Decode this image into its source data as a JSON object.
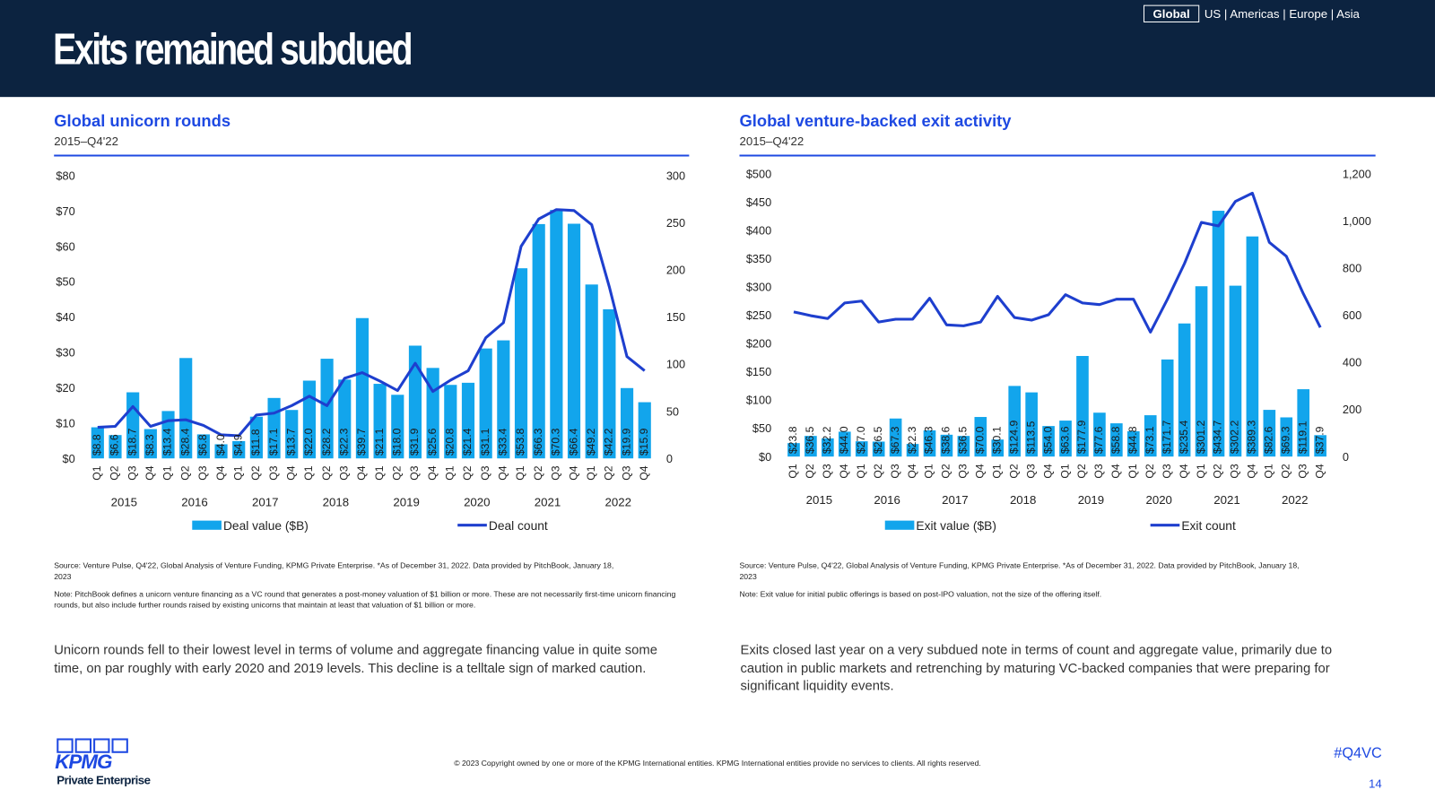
{
  "header": {
    "title": "Exits remained subdued",
    "nav_active": "Global",
    "nav_others": "US | Americas | Europe | Asia"
  },
  "chart_data": [
    {
      "type": "bar_line",
      "title": "Global unicorn rounds",
      "subtitle": "2015–Q4'22",
      "categories": [
        "Q1",
        "Q2",
        "Q3",
        "Q4",
        "Q1",
        "Q2",
        "Q3",
        "Q4",
        "Q1",
        "Q2",
        "Q3",
        "Q4",
        "Q1",
        "Q2",
        "Q3",
        "Q4",
        "Q1",
        "Q2",
        "Q3",
        "Q4",
        "Q1",
        "Q2",
        "Q3",
        "Q4",
        "Q1",
        "Q2",
        "Q3",
        "Q4",
        "Q1",
        "Q2",
        "Q3",
        "Q4"
      ],
      "x_groups": [
        "2015",
        "2016",
        "2017",
        "2018",
        "2019",
        "2020",
        "2021",
        "2022"
      ],
      "series": [
        {
          "name": "Deal value ($B)",
          "type": "bar",
          "color": "#12a5ec",
          "values": [
            8.8,
            6.6,
            18.7,
            8.3,
            13.4,
            28.4,
            6.8,
            4.0,
            4.9,
            11.8,
            17.1,
            13.7,
            22.0,
            28.2,
            22.3,
            39.7,
            21.1,
            18.0,
            31.9,
            25.6,
            20.8,
            21.4,
            31.1,
            33.4,
            53.8,
            66.3,
            70.3,
            66.4,
            49.2,
            42.2,
            19.9,
            15.9
          ],
          "value_labels": [
            "$8.8",
            "$6.6",
            "$18.7",
            "$8.3",
            "$13.4",
            "$28.4",
            "$6.8",
            "$4.0",
            "$4.9",
            "$11.8",
            "$17.1",
            "$13.7",
            "$22.0",
            "$28.2",
            "$22.3",
            "$39.7",
            "$21.1",
            "$18.0",
            "$31.9",
            "$25.6",
            "$20.8",
            "$21.4",
            "$31.1",
            "$33.4",
            "$53.8",
            "$66.3",
            "$70.3",
            "$66.4",
            "$49.2",
            "$42.2",
            "$19.9",
            "$15.9"
          ]
        },
        {
          "name": "Deal count",
          "type": "line",
          "axis": "y2",
          "color": "#1e3fce",
          "values": [
            33,
            34,
            55,
            34,
            40,
            41,
            35,
            25,
            24,
            46,
            48,
            56,
            66,
            56,
            85,
            91,
            82,
            72,
            101,
            71,
            83,
            93,
            128,
            144,
            225,
            254,
            264,
            263,
            248,
            182,
            108,
            93
          ]
        }
      ],
      "ylim": [
        0,
        80
      ],
      "yticks": [
        {
          "value": 0,
          "label": "$0"
        },
        {
          "value": 10,
          "label": "$10"
        },
        {
          "value": 20,
          "label": "$20"
        },
        {
          "value": 30,
          "label": "$30"
        },
        {
          "value": 40,
          "label": "$40"
        },
        {
          "value": 50,
          "label": "$50"
        },
        {
          "value": 60,
          "label": "$60"
        },
        {
          "value": 70,
          "label": "$70"
        },
        {
          "value": 80,
          "label": "$80"
        }
      ],
      "y2lim": [
        0,
        300
      ],
      "y2ticks": [
        0,
        50,
        100,
        150,
        200,
        250,
        300
      ],
      "grid": false,
      "legend": "bottom",
      "source": "Source: Venture Pulse, Q4'22, Global Analysis of Venture Funding, KPMG Private Enterprise. *As of December 31, 2022. Data provided by PitchBook, January 18, 2023",
      "note": "Note: PitchBook defines a unicorn venture financing as a VC round that generates a post-money valuation of $1 billion or more. These are not necessarily first-time unicorn financing rounds, but also include further rounds raised by existing unicorns that maintain at least that valuation of $1 billion or more.",
      "body_text": "Unicorn rounds fell to their lowest level in terms of volume and aggregate financing value in quite some time, on par roughly with early 2020 and 2019 levels. This decline is a telltale sign of marked caution."
    },
    {
      "type": "bar_line",
      "title": "Global venture-backed exit activity",
      "subtitle": "2015–Q4'22",
      "categories": [
        "Q1",
        "Q2",
        "Q3",
        "Q4",
        "Q1",
        "Q2",
        "Q3",
        "Q4",
        "Q1",
        "Q2",
        "Q3",
        "Q4",
        "Q1",
        "Q2",
        "Q3",
        "Q4",
        "Q1",
        "Q2",
        "Q3",
        "Q4",
        "Q1",
        "Q2",
        "Q3",
        "Q4",
        "Q1",
        "Q2",
        "Q3",
        "Q4",
        "Q1",
        "Q2",
        "Q3",
        "Q4"
      ],
      "x_groups": [
        "2015",
        "2016",
        "2017",
        "2018",
        "2019",
        "2020",
        "2021",
        "2022"
      ],
      "series": [
        {
          "name": "Exit value ($B)",
          "type": "bar",
          "color": "#12a5ec",
          "values": [
            23.8,
            36.5,
            32.2,
            44.0,
            27.0,
            26.5,
            67.3,
            22.3,
            46.3,
            38.6,
            36.5,
            70.0,
            30.1,
            124.9,
            113.5,
            54.0,
            63.6,
            177.9,
            77.6,
            58.8,
            44.8,
            73.1,
            171.7,
            235.4,
            301.2,
            434.7,
            302.2,
            389.3,
            82.6,
            69.3,
            119.1,
            37.9
          ],
          "value_labels": [
            "$23.8",
            "$36.5",
            "$32.2",
            "$44.0",
            "$27.0",
            "$26.5",
            "$67.3",
            "$22.3",
            "$46.3",
            "$38.6",
            "$36.5",
            "$70.0",
            "$30.1",
            "$124.9",
            "$113.5",
            "$54.0",
            "$63.6",
            "$177.9",
            "$77.6",
            "$58.8",
            "$44.8",
            "$73.1",
            "$171.7",
            "$235.4",
            "$301.2",
            "$434.7",
            "$302.2",
            "$389.3",
            "$82.6",
            "$69.3",
            "$119.1",
            "$37.9"
          ]
        },
        {
          "name": "Exit count",
          "type": "line",
          "axis": "y2",
          "color": "#1e3fce",
          "values": [
            614,
            598,
            586,
            652,
            660,
            571,
            583,
            583,
            672,
            559,
            555,
            571,
            680,
            590,
            579,
            602,
            687,
            652,
            645,
            668,
            668,
            528,
            668,
            819,
            994,
            979,
            1083,
            1118,
            909,
            850,
            691,
            548
          ]
        }
      ],
      "ylim": [
        0,
        500
      ],
      "yticks": [
        {
          "value": 0,
          "label": "$0"
        },
        {
          "value": 50,
          "label": "$50"
        },
        {
          "value": 100,
          "label": "$100"
        },
        {
          "value": 150,
          "label": "$150"
        },
        {
          "value": 200,
          "label": "$200"
        },
        {
          "value": 250,
          "label": "$250"
        },
        {
          "value": 300,
          "label": "$300"
        },
        {
          "value": 350,
          "label": "$350"
        },
        {
          "value": 400,
          "label": "$400"
        },
        {
          "value": 450,
          "label": "$450"
        },
        {
          "value": 500,
          "label": "$500"
        }
      ],
      "y2lim": [
        0,
        1200
      ],
      "y2ticks": [
        0,
        200,
        400,
        600,
        800,
        {
          "value": 1000,
          "label": "1,000"
        },
        {
          "value": 1200,
          "label": "1,200"
        }
      ],
      "grid": false,
      "legend": "bottom",
      "source": "Source: Venture Pulse, Q4'22, Global Analysis of Venture Funding, KPMG Private Enterprise. *As of December 31, 2022. Data provided by PitchBook, January 18, 2023",
      "note": "Note: Exit value for initial public offerings is based on post-IPO valuation, not the size of the offering itself.",
      "body_text": "Exits closed last year on a very subdued note in terms of count and aggregate value, primarily due to caution in public markets and retrenching by maturing VC-backed companies that were preparing for significant liquidity events."
    }
  ],
  "footer": {
    "logo": "KPMG",
    "logo_sub": "Private Enterprise",
    "copyright": "© 2023 Copyright owned by one or more of the KPMG International entities. KPMG International entities provide no services to clients. All rights reserved.",
    "hashtag": "#Q4VC",
    "page": "14"
  }
}
